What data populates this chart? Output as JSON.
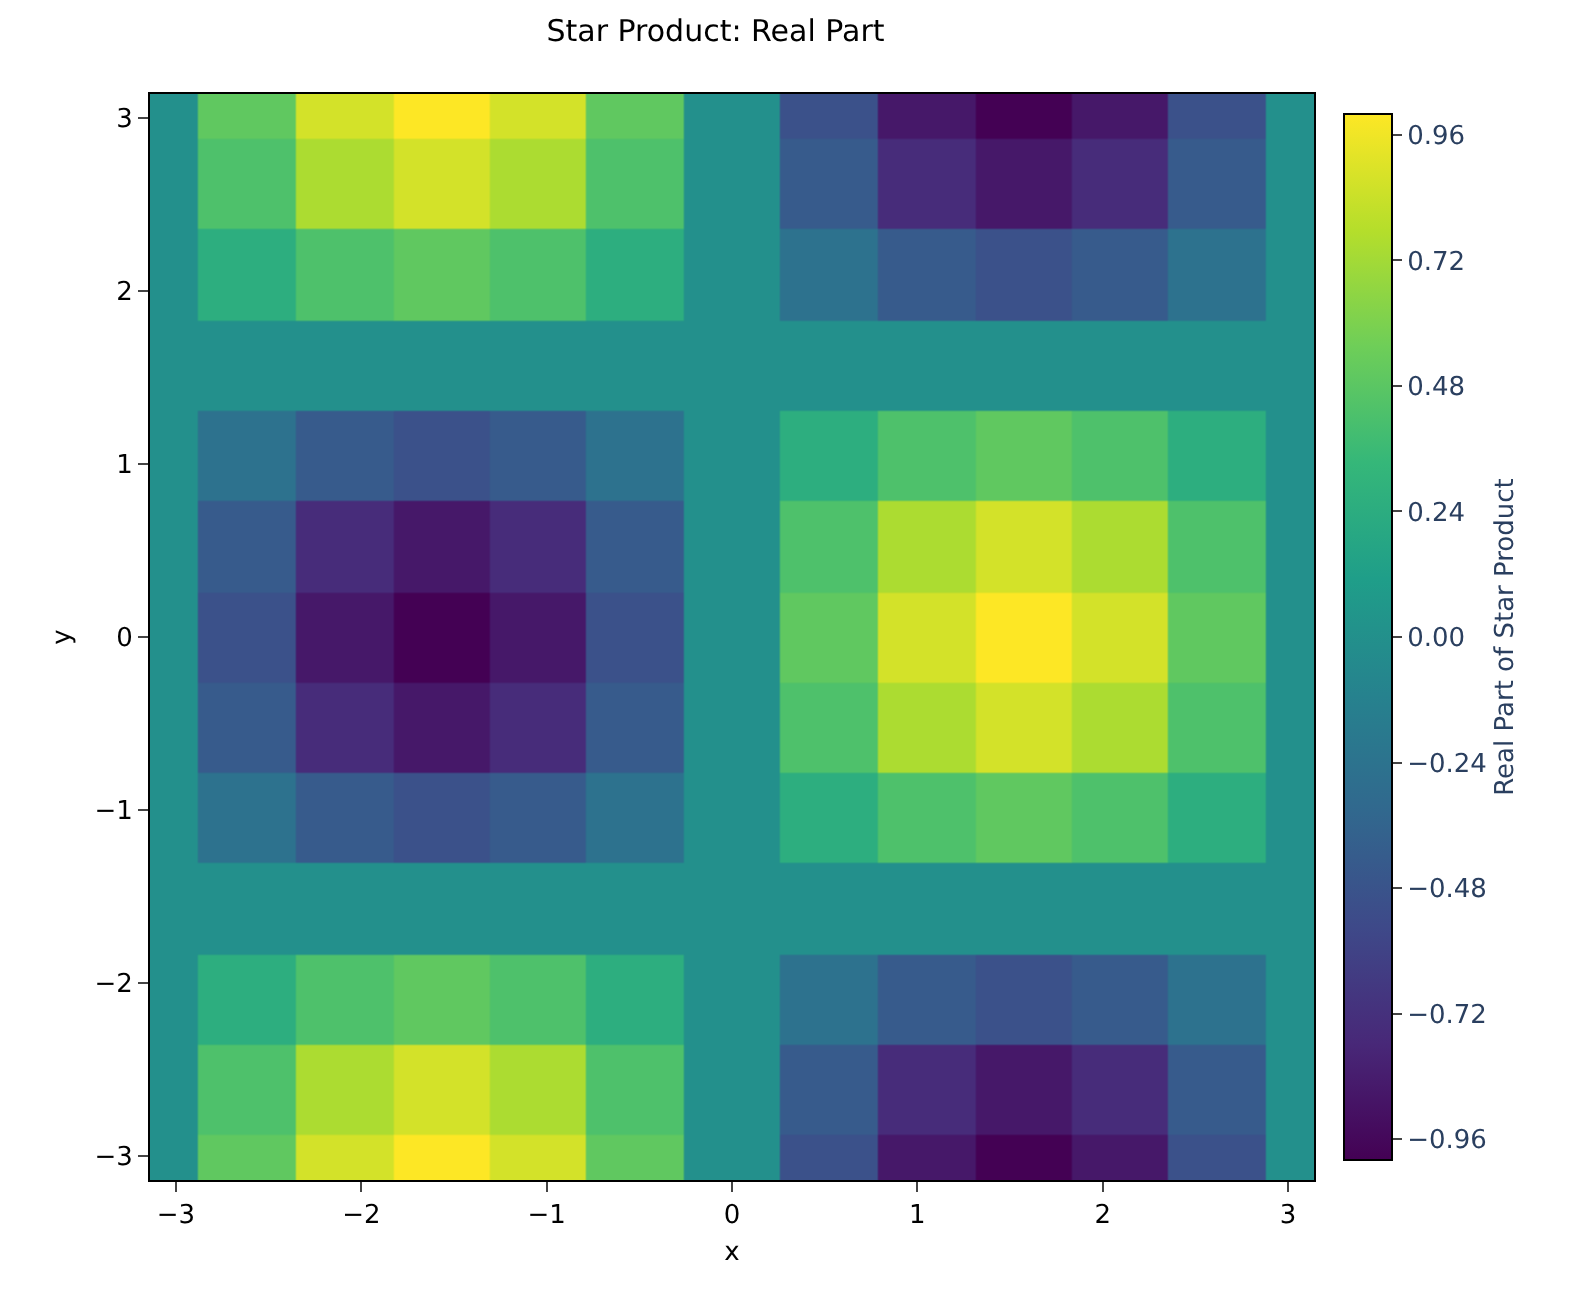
{
  "chart_data": {
    "type": "heatmap",
    "title": "Star Product: Real Part",
    "xlabel": "x",
    "ylabel": "y",
    "clabel": "Real Part of Star Product",
    "x": [
      -3.14,
      -2.62,
      -2.09,
      -1.57,
      -1.05,
      -0.52,
      0,
      0.52,
      1.05,
      1.57,
      2.09,
      2.62,
      3.14
    ],
    "cells": [
      [
        0,
        0.5,
        0.87,
        1,
        0.87,
        0.5,
        0,
        -0.5,
        -0.87,
        -1,
        -0.87,
        -0.5,
        0
      ],
      [
        0,
        0.43,
        0.75,
        0.87,
        0.75,
        0.43,
        0,
        -0.43,
        -0.75,
        -0.87,
        -0.75,
        -0.43,
        0
      ],
      [
        0,
        0.25,
        0.43,
        0.5,
        0.43,
        0.25,
        0,
        -0.25,
        -0.43,
        -0.5,
        -0.43,
        -0.25,
        0
      ],
      [
        0,
        0,
        0,
        0,
        0,
        0,
        0,
        0,
        0,
        0,
        0,
        0,
        0
      ],
      [
        0,
        -0.25,
        -0.43,
        -0.5,
        -0.43,
        -0.25,
        0,
        0.25,
        0.43,
        0.5,
        0.43,
        0.25,
        0
      ],
      [
        0,
        -0.43,
        -0.75,
        -0.87,
        -0.75,
        -0.43,
        0,
        0.43,
        0.75,
        0.87,
        0.75,
        0.43,
        0
      ],
      [
        0,
        -0.5,
        -0.87,
        -1,
        -0.87,
        -0.5,
        0,
        0.5,
        0.87,
        1,
        0.87,
        0.5,
        0
      ],
      [
        0,
        -0.43,
        -0.75,
        -0.87,
        -0.75,
        -0.43,
        0,
        0.43,
        0.75,
        0.87,
        0.75,
        0.43,
        0
      ],
      [
        0,
        -0.25,
        -0.43,
        -0.5,
        -0.43,
        -0.25,
        0,
        0.25,
        0.43,
        0.5,
        0.43,
        0.25,
        0
      ],
      [
        0,
        0,
        0,
        0,
        0,
        0,
        0,
        0,
        0,
        0,
        0,
        0,
        0
      ],
      [
        0,
        0.25,
        0.43,
        0.5,
        0.43,
        0.25,
        0,
        -0.25,
        -0.43,
        -0.5,
        -0.43,
        -0.25,
        0
      ],
      [
        0,
        0.43,
        0.75,
        0.87,
        0.75,
        0.43,
        0,
        -0.43,
        -0.75,
        -0.87,
        -0.75,
        -0.43,
        0
      ],
      [
        0,
        0.5,
        0.87,
        1,
        0.87,
        0.5,
        0,
        -0.5,
        -0.87,
        -1,
        -0.87,
        -0.5,
        0
      ]
    ],
    "xlim": [
      -3.14,
      3.14
    ],
    "ylim": [
      -3.14,
      3.14
    ],
    "xticks": [
      -3,
      -2,
      -1,
      0,
      1,
      2,
      3
    ],
    "yticks": [
      -3,
      -2,
      -1,
      0,
      1,
      2,
      3
    ],
    "clim": [
      -1,
      1
    ],
    "cticks": [
      {
        "value": -0.96,
        "label": "−0.96"
      },
      {
        "value": -0.72,
        "label": "−0.72"
      },
      {
        "value": -0.48,
        "label": "−0.48"
      },
      {
        "value": -0.24,
        "label": "−0.24"
      },
      {
        "value": 0,
        "label": "0.00"
      },
      {
        "value": 0.24,
        "label": "0.24"
      },
      {
        "value": 0.48,
        "label": "0.48"
      },
      {
        "value": 0.72,
        "label": "0.72"
      },
      {
        "value": 0.96,
        "label": "0.96"
      }
    ]
  }
}
